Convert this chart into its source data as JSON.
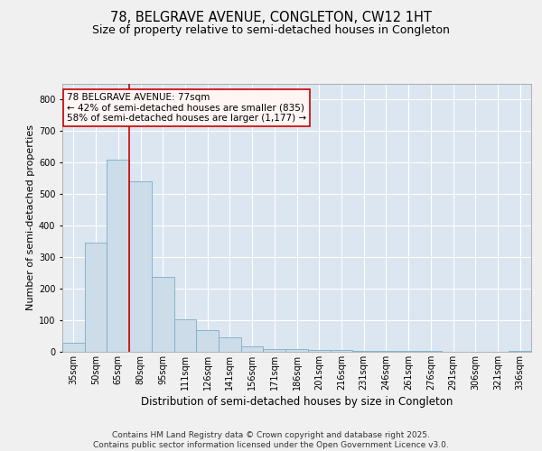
{
  "title": "78, BELGRAVE AVENUE, CONGLETON, CW12 1HT",
  "subtitle": "Size of property relative to semi-detached houses in Congleton",
  "xlabel": "Distribution of semi-detached houses by size in Congleton",
  "ylabel": "Number of semi-detached properties",
  "categories": [
    "35sqm",
    "50sqm",
    "65sqm",
    "80sqm",
    "95sqm",
    "111sqm",
    "126sqm",
    "141sqm",
    "156sqm",
    "171sqm",
    "186sqm",
    "201sqm",
    "216sqm",
    "231sqm",
    "246sqm",
    "261sqm",
    "276sqm",
    "291sqm",
    "306sqm",
    "321sqm",
    "336sqm"
  ],
  "bar_heights": [
    28,
    345,
    610,
    540,
    238,
    103,
    68,
    45,
    18,
    10,
    10,
    5,
    5,
    3,
    2,
    2,
    2,
    1,
    1,
    0,
    3
  ],
  "bar_color": "#ccdce9",
  "bar_edge_color": "#7aaec8",
  "vline_color": "#cc0000",
  "annotation_text": "78 BELGRAVE AVENUE: 77sqm\n← 42% of semi-detached houses are smaller (835)\n58% of semi-detached houses are larger (1,177) →",
  "annotation_box_facecolor": "#fff5f5",
  "annotation_box_edgecolor": "#cc0000",
  "ylim": [
    0,
    850
  ],
  "yticks": [
    0,
    100,
    200,
    300,
    400,
    500,
    600,
    700,
    800
  ],
  "plot_bg": "#dce6f0",
  "fig_bg": "#f0f0f0",
  "grid_color": "#ffffff",
  "footer_line1": "Contains HM Land Registry data © Crown copyright and database right 2025.",
  "footer_line2": "Contains public sector information licensed under the Open Government Licence v3.0.",
  "title_fontsize": 10.5,
  "subtitle_fontsize": 9,
  "ylabel_fontsize": 8,
  "xlabel_fontsize": 8.5,
  "tick_fontsize": 7,
  "annot_fontsize": 7.5,
  "footer_fontsize": 6.5
}
